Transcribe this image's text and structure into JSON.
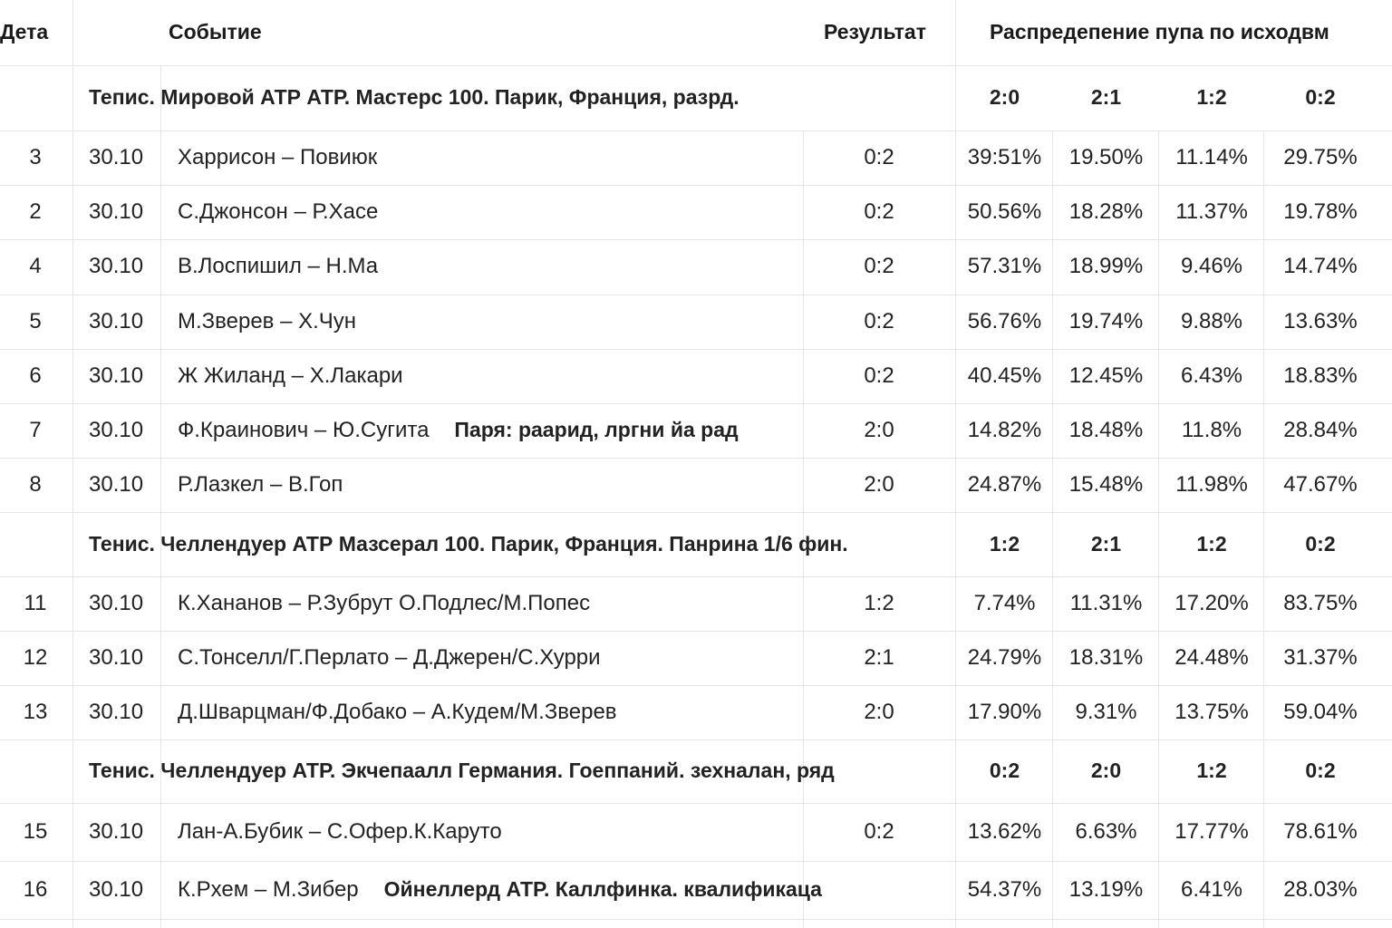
{
  "header": {
    "col_num": "Дета",
    "col_event": "Событие",
    "col_result": "Результат",
    "col_dist": "Распредепение пупа по исходвм"
  },
  "sections": [
    {
      "title": "Тепис. Мировой АТР АТР. Мастерс 100. Парик,  Франция, разрд.",
      "labels": [
        "2:0",
        "2:1",
        "1:2",
        "0:2"
      ],
      "rows": [
        {
          "num": "3",
          "date": "30.10",
          "event": "Харрисон – Повиюк",
          "note": "",
          "result": "0:2",
          "p": [
            "39:51%",
            "19.50%",
            "11.14%",
            "29.75%"
          ]
        },
        {
          "num": "2",
          "date": "30.10",
          "event": "С.Джонсон – Р.Хасе",
          "note": "",
          "result": "0:2",
          "p": [
            "50.56%",
            "18.28%",
            "11.37%",
            "19.78%"
          ]
        },
        {
          "num": "4",
          "date": "30.10",
          "event": "В.Лоспишил – Н.Ма",
          "note": "",
          "result": "0:2",
          "p": [
            "57.31%",
            "18.99%",
            "9.46%",
            "14.74%"
          ]
        },
        {
          "num": "5",
          "date": "30.10",
          "event": "М.Зверев – Х.Чун",
          "note": "",
          "result": "0:2",
          "p": [
            "56.76%",
            "19.74%",
            "9.88%",
            "13.63%"
          ]
        },
        {
          "num": "6",
          "date": "30.10",
          "event": "Ж Жиланд – Х.Лакари",
          "note": "",
          "result": "0:2",
          "p": [
            "40.45%",
            "12.45%",
            "6.43%",
            "18.83%"
          ]
        },
        {
          "num": "7",
          "date": "30.10",
          "event": "Ф.Краинович – Ю.Сугита",
          "note": "Паря: раарид, лргни йа  рад",
          "result": "2:0",
          "p": [
            "14.82%",
            "18.48%",
            "11.8%",
            "28.84%"
          ]
        },
        {
          "num": "8",
          "date": "30.10",
          "event": "Р.Лазкел – В.Гоп",
          "note": "",
          "result": "2:0",
          "p": [
            "24.87%",
            "15.48%",
            "11.98%",
            "47.67%"
          ]
        }
      ]
    },
    {
      "title": "Тенис. Челлендуер АТР Мазсерал 100. Парик, Франция. Панрина  1/6 фин.",
      "labels": [
        "1:2",
        "2:1",
        "1:2",
        "0:2"
      ],
      "rows": [
        {
          "num": "11",
          "date": "30.10",
          "event": "К.Хананов – Р.Зубрут    О.Подлес/М.Попес",
          "note": "",
          "result": "1:2",
          "p": [
            "7.74%",
            "11.31%",
            "17.20%",
            "83.75%"
          ]
        },
        {
          "num": "12",
          "date": "30.10",
          "event": "С.Тонселл/Г.Перлато – Д.Джерен/С.Хурри",
          "note": "",
          "result": "2:1",
          "p": [
            "24.79%",
            "18.31%",
            "24.48%",
            "31.37%"
          ]
        },
        {
          "num": "13",
          "date": "30.10",
          "event": "Д.Шварцман/Ф.Добако  – А.Кудем/М.Зверев",
          "note": "",
          "result": "2:0",
          "p": [
            "17.90%",
            "9.31%",
            "13.75%",
            "59.04%"
          ]
        }
      ]
    },
    {
      "title": "Тенис. Челлендуер АТР. Экчепаалл Германия. Гоеппаний. зехналан, ряд",
      "labels": [
        "0:2",
        "2:0",
        "1:2",
        "0:2"
      ],
      "rows": [
        {
          "num": "15",
          "date": "30.10",
          "event": "Лан-А.Бубик – С.Офер.К.Каруто",
          "note": "",
          "result": "0:2",
          "p": [
            "13.62%",
            "6.63%",
            "17.77%",
            "78.61%"
          ]
        },
        {
          "num": "16",
          "date": "30.10",
          "event": "К.Рхем – М.Зибер",
          "note": "Ойнеллерд АТР. Каллфинка. квалификаца",
          "result": "",
          "p": [
            "54.37%",
            "13.19%",
            "6.41%",
            "28.03%"
          ]
        }
      ]
    }
  ]
}
